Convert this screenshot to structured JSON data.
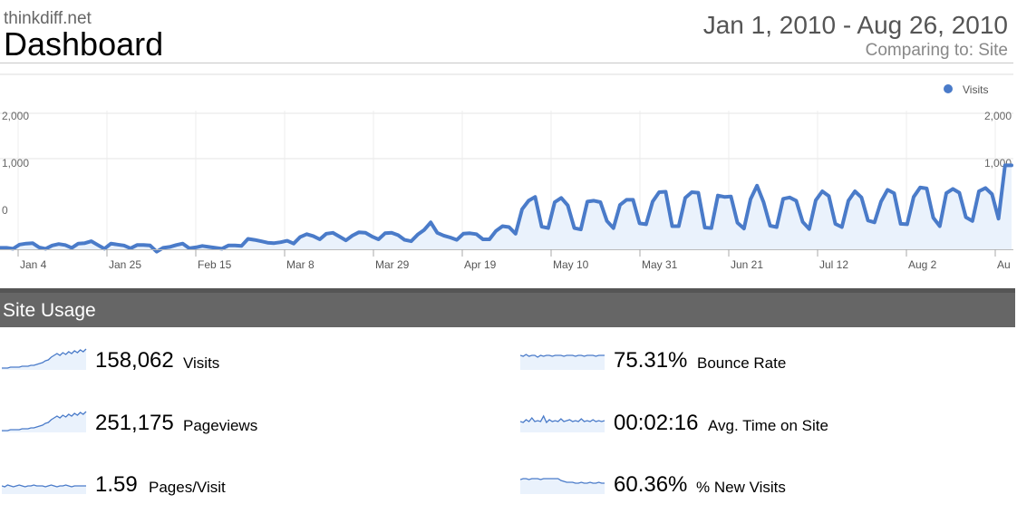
{
  "header": {
    "site": "thinkdiff.net",
    "title": "Dashboard",
    "date_range": "Jan 1, 2010 - Aug 26, 2010",
    "comparing": "Comparing to: Site"
  },
  "colors": {
    "accent": "#4a7bc9",
    "fill": "#eaf2fc",
    "section_bar": "#666666"
  },
  "chart_data": {
    "type": "line",
    "title": "",
    "legend": [
      "Visits"
    ],
    "legend_position": "top-right",
    "grid": true,
    "y_ticks_left": [
      "2,000",
      "1,000",
      "0"
    ],
    "y_ticks_right": [
      "2,000",
      "1,000",
      "0"
    ],
    "x_ticks": [
      "Jan 4",
      "Jan 25",
      "Feb 15",
      "Mar 8",
      "Mar 29",
      "Apr 19",
      "May 10",
      "May 31",
      "Jun 21",
      "Jul 12",
      "Aug 2",
      "Au"
    ],
    "series": [
      {
        "name": "Visits",
        "values": [
          -700,
          -700,
          -720,
          -630,
          -610,
          -600,
          -690,
          -720,
          -650,
          -620,
          -640,
          -700,
          -610,
          -600,
          -560,
          -640,
          -720,
          -610,
          -630,
          -650,
          -710,
          -640,
          -640,
          -650,
          -780,
          -700,
          -680,
          -640,
          -610,
          -710,
          -690,
          -660,
          -680,
          -700,
          -720,
          -650,
          -650,
          -660,
          -510,
          -530,
          -560,
          -590,
          -600,
          -580,
          -550,
          -610,
          -470,
          -410,
          -450,
          -520,
          -400,
          -380,
          -460,
          -540,
          -440,
          -370,
          -380,
          -460,
          -520,
          -390,
          -380,
          -430,
          -530,
          -560,
          -420,
          -320,
          -160,
          -380,
          -440,
          -480,
          -530,
          -400,
          -390,
          -410,
          -520,
          -520,
          -340,
          -240,
          -260,
          -400,
          120,
          300,
          380,
          -250,
          -280,
          270,
          360,
          200,
          -280,
          -310,
          280,
          300,
          270,
          -130,
          -280,
          210,
          320,
          320,
          -180,
          -200,
          280,
          480,
          490,
          -240,
          -240,
          360,
          480,
          470,
          -270,
          -280,
          410,
          380,
          390,
          -170,
          -290,
          330,
          620,
          270,
          -230,
          -260,
          340,
          370,
          300,
          -150,
          -300,
          310,
          500,
          400,
          -190,
          -260,
          300,
          500,
          370,
          -120,
          -160,
          280,
          530,
          460,
          -190,
          -200,
          380,
          580,
          560,
          -60,
          -240,
          460,
          550,
          470,
          -50,
          -130,
          500,
          570,
          440,
          -80,
          1050,
          1050
        ]
      }
    ]
  },
  "site_usage": {
    "title": "Site Usage",
    "metrics": [
      {
        "value": "158,062",
        "label": "Visits",
        "sparkline": [
          2,
          2,
          2,
          3,
          3,
          3,
          3,
          4,
          4,
          4,
          5,
          5,
          6,
          7,
          8,
          10,
          11,
          14,
          16,
          18,
          16,
          19,
          17,
          20,
          18,
          21,
          19,
          22,
          20,
          23
        ]
      },
      {
        "value": "251,175",
        "label": "Pageviews",
        "sparkline": [
          2,
          2,
          2,
          3,
          3,
          3,
          3,
          4,
          4,
          4,
          5,
          5,
          6,
          7,
          8,
          10,
          11,
          14,
          16,
          18,
          16,
          19,
          17,
          20,
          18,
          21,
          19,
          22,
          20,
          23
        ]
      },
      {
        "value": "1.59",
        "label": "Pages/Visit",
        "sparkline": [
          9,
          8,
          10,
          9,
          8,
          9,
          10,
          9,
          8,
          9,
          9,
          10,
          9,
          9,
          9,
          8,
          9,
          10,
          9,
          8,
          9,
          9,
          10,
          9,
          8,
          9,
          9,
          9,
          9,
          9
        ]
      },
      {
        "value": "75.31%",
        "label": "Bounce Rate",
        "sparkline": [
          16,
          15,
          17,
          15,
          16,
          16,
          14,
          16,
          15,
          16,
          16,
          15,
          16,
          16,
          16,
          15,
          16,
          16,
          16,
          15,
          16,
          16,
          15,
          16,
          16,
          16,
          15,
          16,
          16,
          16
        ]
      },
      {
        "value": "00:02:16",
        "label": "Avg. Time on Site",
        "sparkline": [
          12,
          11,
          14,
          12,
          16,
          12,
          13,
          12,
          18,
          11,
          14,
          12,
          13,
          12,
          15,
          12,
          13,
          14,
          12,
          13,
          12,
          15,
          12,
          13,
          12,
          14,
          12,
          13,
          12,
          13
        ]
      },
      {
        "value": "60.36%",
        "label": "% New Visits",
        "sparkline": [
          16,
          17,
          17,
          16,
          17,
          17,
          17,
          16,
          17,
          17,
          17,
          17,
          17,
          17,
          15,
          14,
          13,
          13,
          13,
          12,
          12,
          13,
          12,
          12,
          13,
          12,
          12,
          13,
          12,
          12
        ]
      }
    ]
  }
}
